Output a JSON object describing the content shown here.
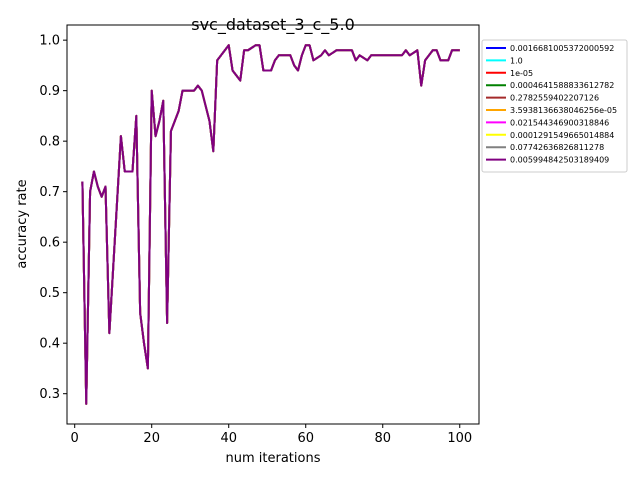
{
  "chart_data": {
    "type": "line",
    "title": "svc_dataset_3_c_5.0",
    "xlabel": "num iterations",
    "ylabel": "accuracy rate",
    "xlim": [
      -2,
      105
    ],
    "ylim": [
      0.24,
      1.03
    ],
    "xticks": [
      0,
      20,
      40,
      60,
      80,
      100
    ],
    "yticks": [
      0.3,
      0.4,
      0.5,
      0.6,
      0.7,
      0.8,
      0.9,
      1.0
    ],
    "grid": false,
    "legend_position": "outside-right",
    "x": [
      2,
      3,
      4,
      5,
      6,
      7,
      8,
      9,
      10,
      11,
      12,
      13,
      14,
      15,
      16,
      17,
      18,
      19,
      20,
      21,
      22,
      23,
      24,
      25,
      26,
      27,
      28,
      29,
      30,
      31,
      32,
      33,
      34,
      35,
      36,
      37,
      38,
      39,
      40,
      41,
      42,
      43,
      44,
      45,
      46,
      47,
      48,
      49,
      50,
      51,
      52,
      53,
      54,
      55,
      56,
      57,
      58,
      59,
      60,
      61,
      62,
      63,
      64,
      65,
      66,
      67,
      68,
      69,
      70,
      71,
      72,
      73,
      74,
      75,
      76,
      77,
      78,
      79,
      80,
      81,
      82,
      83,
      84,
      85,
      86,
      87,
      88,
      89,
      90,
      91,
      92,
      93,
      94,
      95,
      96,
      97,
      98,
      99,
      100
    ],
    "series": [
      {
        "name": "0.0016681005372000592",
        "color": "#0000ff",
        "values": [
          0.72,
          0.28,
          0.7,
          0.74,
          0.71,
          0.69,
          0.71,
          0.42,
          0.55,
          0.68,
          0.81,
          0.74,
          0.74,
          0.74,
          0.85,
          0.46,
          0.4,
          0.35,
          0.9,
          0.81,
          0.84,
          0.88,
          0.44,
          0.82,
          0.84,
          0.86,
          0.9,
          0.9,
          0.9,
          0.9,
          0.91,
          0.9,
          0.87,
          0.84,
          0.78,
          0.96,
          0.97,
          0.98,
          0.99,
          0.94,
          0.93,
          0.92,
          0.98,
          0.98,
          0.985,
          0.99,
          0.99,
          0.94,
          0.94,
          0.94,
          0.96,
          0.97,
          0.97,
          0.97,
          0.97,
          0.95,
          0.94,
          0.97,
          0.99,
          0.99,
          0.96,
          0.965,
          0.97,
          0.98,
          0.97,
          0.975,
          0.98,
          0.98,
          0.98,
          0.98,
          0.98,
          0.96,
          0.97,
          0.965,
          0.96,
          0.97,
          0.97,
          0.97,
          0.97,
          0.97,
          0.97,
          0.97,
          0.97,
          0.97,
          0.98,
          0.97,
          0.975,
          0.98,
          0.91,
          0.96,
          0.97,
          0.98,
          0.98,
          0.96,
          0.96,
          0.96,
          0.98,
          0.98,
          0.98
        ]
      },
      {
        "name": "1.0",
        "color": "#00ffff",
        "values": [
          0.72,
          0.28,
          0.7,
          0.74,
          0.71,
          0.69,
          0.71,
          0.42,
          0.55,
          0.68,
          0.81,
          0.74,
          0.74,
          0.74,
          0.85,
          0.46,
          0.4,
          0.35,
          0.9,
          0.81,
          0.84,
          0.88,
          0.44,
          0.82,
          0.84,
          0.86,
          0.9,
          0.9,
          0.9,
          0.9,
          0.91,
          0.9,
          0.87,
          0.84,
          0.78,
          0.96,
          0.97,
          0.98,
          0.99,
          0.94,
          0.93,
          0.92,
          0.98,
          0.98,
          0.985,
          0.99,
          0.99,
          0.94,
          0.94,
          0.94,
          0.96,
          0.97,
          0.97,
          0.97,
          0.97,
          0.95,
          0.94,
          0.97,
          0.99,
          0.99,
          0.96,
          0.965,
          0.97,
          0.98,
          0.97,
          0.975,
          0.98,
          0.98,
          0.98,
          0.98,
          0.98,
          0.96,
          0.97,
          0.965,
          0.96,
          0.97,
          0.97,
          0.97,
          0.97,
          0.97,
          0.97,
          0.97,
          0.97,
          0.97,
          0.98,
          0.97,
          0.975,
          0.98,
          0.91,
          0.96,
          0.97,
          0.98,
          0.98,
          0.96,
          0.96,
          0.96,
          0.98,
          0.98,
          0.98
        ]
      },
      {
        "name": "1e-05",
        "color": "#ff0000",
        "values": [
          0.72,
          0.28,
          0.7,
          0.74,
          0.71,
          0.69,
          0.71,
          0.42,
          0.55,
          0.68,
          0.81,
          0.74,
          0.74,
          0.74,
          0.85,
          0.46,
          0.4,
          0.35,
          0.9,
          0.81,
          0.84,
          0.88,
          0.44,
          0.82,
          0.84,
          0.86,
          0.9,
          0.9,
          0.9,
          0.9,
          0.91,
          0.9,
          0.87,
          0.84,
          0.78,
          0.96,
          0.97,
          0.98,
          0.99,
          0.94,
          0.93,
          0.92,
          0.98,
          0.98,
          0.985,
          0.99,
          0.99,
          0.94,
          0.94,
          0.94,
          0.96,
          0.97,
          0.97,
          0.97,
          0.97,
          0.95,
          0.94,
          0.97,
          0.99,
          0.99,
          0.96,
          0.965,
          0.97,
          0.98,
          0.97,
          0.975,
          0.98,
          0.98,
          0.98,
          0.98,
          0.98,
          0.96,
          0.97,
          0.965,
          0.96,
          0.97,
          0.97,
          0.97,
          0.97,
          0.97,
          0.97,
          0.97,
          0.97,
          0.97,
          0.98,
          0.97,
          0.975,
          0.98,
          0.91,
          0.96,
          0.97,
          0.98,
          0.98,
          0.96,
          0.96,
          0.96,
          0.98,
          0.98,
          0.98
        ]
      },
      {
        "name": "0.0004641588833612782",
        "color": "#008000",
        "values": [
          0.72,
          0.28,
          0.7,
          0.74,
          0.71,
          0.69,
          0.71,
          0.42,
          0.55,
          0.68,
          0.81,
          0.74,
          0.74,
          0.74,
          0.85,
          0.46,
          0.4,
          0.35,
          0.9,
          0.81,
          0.84,
          0.88,
          0.44,
          0.82,
          0.84,
          0.86,
          0.9,
          0.9,
          0.9,
          0.9,
          0.91,
          0.9,
          0.87,
          0.84,
          0.78,
          0.96,
          0.97,
          0.98,
          0.99,
          0.94,
          0.93,
          0.92,
          0.98,
          0.98,
          0.985,
          0.99,
          0.99,
          0.94,
          0.94,
          0.94,
          0.96,
          0.97,
          0.97,
          0.97,
          0.97,
          0.95,
          0.94,
          0.97,
          0.99,
          0.99,
          0.96,
          0.965,
          0.97,
          0.98,
          0.97,
          0.975,
          0.98,
          0.98,
          0.98,
          0.98,
          0.98,
          0.96,
          0.97,
          0.965,
          0.96,
          0.97,
          0.97,
          0.97,
          0.97,
          0.97,
          0.97,
          0.97,
          0.97,
          0.97,
          0.98,
          0.97,
          0.975,
          0.98,
          0.91,
          0.96,
          0.97,
          0.98,
          0.98,
          0.96,
          0.96,
          0.96,
          0.98,
          0.98,
          0.98
        ]
      },
      {
        "name": "0.2782559402207126",
        "color": "#a52a2a",
        "values": [
          0.72,
          0.28,
          0.7,
          0.74,
          0.71,
          0.69,
          0.71,
          0.42,
          0.55,
          0.68,
          0.81,
          0.74,
          0.74,
          0.74,
          0.85,
          0.46,
          0.4,
          0.35,
          0.9,
          0.81,
          0.84,
          0.88,
          0.44,
          0.82,
          0.84,
          0.86,
          0.9,
          0.9,
          0.9,
          0.9,
          0.91,
          0.9,
          0.87,
          0.84,
          0.78,
          0.96,
          0.97,
          0.98,
          0.99,
          0.94,
          0.93,
          0.92,
          0.98,
          0.98,
          0.985,
          0.99,
          0.99,
          0.94,
          0.94,
          0.94,
          0.96,
          0.97,
          0.97,
          0.97,
          0.97,
          0.95,
          0.94,
          0.97,
          0.99,
          0.99,
          0.96,
          0.965,
          0.97,
          0.98,
          0.97,
          0.975,
          0.98,
          0.98,
          0.98,
          0.98,
          0.98,
          0.96,
          0.97,
          0.965,
          0.96,
          0.97,
          0.97,
          0.97,
          0.97,
          0.97,
          0.97,
          0.97,
          0.97,
          0.97,
          0.98,
          0.97,
          0.975,
          0.98,
          0.91,
          0.96,
          0.97,
          0.98,
          0.98,
          0.96,
          0.96,
          0.96,
          0.98,
          0.98,
          0.98
        ]
      },
      {
        "name": "3.5938136638046256e-05",
        "color": "#ffa500",
        "values": [
          0.72,
          0.28,
          0.7,
          0.74,
          0.71,
          0.69,
          0.71,
          0.42,
          0.55,
          0.68,
          0.81,
          0.74,
          0.74,
          0.74,
          0.85,
          0.46,
          0.4,
          0.35,
          0.9,
          0.81,
          0.84,
          0.88,
          0.44,
          0.82,
          0.84,
          0.86,
          0.9,
          0.9,
          0.9,
          0.9,
          0.91,
          0.9,
          0.87,
          0.84,
          0.78,
          0.96,
          0.97,
          0.98,
          0.99,
          0.94,
          0.93,
          0.92,
          0.98,
          0.98,
          0.985,
          0.99,
          0.99,
          0.94,
          0.94,
          0.94,
          0.96,
          0.97,
          0.97,
          0.97,
          0.97,
          0.95,
          0.94,
          0.97,
          0.99,
          0.99,
          0.96,
          0.965,
          0.97,
          0.98,
          0.97,
          0.975,
          0.98,
          0.98,
          0.98,
          0.98,
          0.98,
          0.96,
          0.97,
          0.965,
          0.96,
          0.97,
          0.97,
          0.97,
          0.97,
          0.97,
          0.97,
          0.97,
          0.97,
          0.97,
          0.98,
          0.97,
          0.975,
          0.98,
          0.91,
          0.96,
          0.97,
          0.98,
          0.98,
          0.96,
          0.96,
          0.96,
          0.98,
          0.98,
          0.98
        ]
      },
      {
        "name": "0.021544346900318846",
        "color": "#ff00ff",
        "values": [
          0.72,
          0.28,
          0.7,
          0.74,
          0.71,
          0.69,
          0.71,
          0.42,
          0.55,
          0.68,
          0.81,
          0.74,
          0.74,
          0.74,
          0.85,
          0.46,
          0.4,
          0.35,
          0.9,
          0.81,
          0.84,
          0.88,
          0.44,
          0.82,
          0.84,
          0.86,
          0.9,
          0.9,
          0.9,
          0.9,
          0.91,
          0.9,
          0.87,
          0.84,
          0.78,
          0.96,
          0.97,
          0.98,
          0.99,
          0.94,
          0.93,
          0.92,
          0.98,
          0.98,
          0.985,
          0.99,
          0.99,
          0.94,
          0.94,
          0.94,
          0.96,
          0.97,
          0.97,
          0.97,
          0.97,
          0.95,
          0.94,
          0.97,
          0.99,
          0.99,
          0.96,
          0.965,
          0.97,
          0.98,
          0.97,
          0.975,
          0.98,
          0.98,
          0.98,
          0.98,
          0.98,
          0.96,
          0.97,
          0.965,
          0.96,
          0.97,
          0.97,
          0.97,
          0.97,
          0.97,
          0.97,
          0.97,
          0.97,
          0.97,
          0.98,
          0.97,
          0.975,
          0.98,
          0.91,
          0.96,
          0.97,
          0.98,
          0.98,
          0.96,
          0.96,
          0.96,
          0.98,
          0.98,
          0.98
        ]
      },
      {
        "name": "0.0001291549665014884",
        "color": "#ffff00",
        "values": [
          0.72,
          0.28,
          0.7,
          0.74,
          0.71,
          0.69,
          0.71,
          0.42,
          0.55,
          0.68,
          0.81,
          0.74,
          0.74,
          0.74,
          0.85,
          0.46,
          0.4,
          0.35,
          0.9,
          0.81,
          0.84,
          0.88,
          0.44,
          0.82,
          0.84,
          0.86,
          0.9,
          0.9,
          0.9,
          0.9,
          0.91,
          0.9,
          0.87,
          0.84,
          0.78,
          0.96,
          0.97,
          0.98,
          0.99,
          0.94,
          0.93,
          0.92,
          0.98,
          0.98,
          0.985,
          0.99,
          0.99,
          0.94,
          0.94,
          0.94,
          0.96,
          0.97,
          0.97,
          0.97,
          0.97,
          0.95,
          0.94,
          0.97,
          0.99,
          0.99,
          0.96,
          0.965,
          0.97,
          0.98,
          0.97,
          0.975,
          0.98,
          0.98,
          0.98,
          0.98,
          0.98,
          0.96,
          0.97,
          0.965,
          0.96,
          0.97,
          0.97,
          0.97,
          0.97,
          0.97,
          0.97,
          0.97,
          0.97,
          0.97,
          0.98,
          0.97,
          0.975,
          0.98,
          0.91,
          0.96,
          0.97,
          0.98,
          0.98,
          0.96,
          0.96,
          0.96,
          0.98,
          0.98,
          0.98
        ]
      },
      {
        "name": "0.07742636826811278",
        "color": "#808080",
        "values": [
          0.72,
          0.28,
          0.7,
          0.74,
          0.71,
          0.69,
          0.71,
          0.42,
          0.55,
          0.68,
          0.81,
          0.74,
          0.74,
          0.74,
          0.85,
          0.46,
          0.4,
          0.35,
          0.9,
          0.81,
          0.84,
          0.88,
          0.44,
          0.82,
          0.84,
          0.86,
          0.9,
          0.9,
          0.9,
          0.9,
          0.91,
          0.9,
          0.87,
          0.84,
          0.78,
          0.96,
          0.97,
          0.98,
          0.99,
          0.94,
          0.93,
          0.92,
          0.98,
          0.98,
          0.985,
          0.99,
          0.99,
          0.94,
          0.94,
          0.94,
          0.96,
          0.97,
          0.97,
          0.97,
          0.97,
          0.95,
          0.94,
          0.97,
          0.99,
          0.99,
          0.96,
          0.965,
          0.97,
          0.98,
          0.97,
          0.975,
          0.98,
          0.98,
          0.98,
          0.98,
          0.98,
          0.96,
          0.97,
          0.965,
          0.96,
          0.97,
          0.97,
          0.97,
          0.97,
          0.97,
          0.97,
          0.97,
          0.97,
          0.97,
          0.98,
          0.97,
          0.975,
          0.98,
          0.91,
          0.96,
          0.97,
          0.98,
          0.98,
          0.96,
          0.96,
          0.96,
          0.98,
          0.98,
          0.98
        ]
      },
      {
        "name": "0.005994842503189409",
        "color": "#800080",
        "values": [
          0.72,
          0.28,
          0.7,
          0.74,
          0.71,
          0.69,
          0.71,
          0.42,
          0.55,
          0.68,
          0.81,
          0.74,
          0.74,
          0.74,
          0.85,
          0.46,
          0.4,
          0.35,
          0.9,
          0.81,
          0.84,
          0.88,
          0.44,
          0.82,
          0.84,
          0.86,
          0.9,
          0.9,
          0.9,
          0.9,
          0.91,
          0.9,
          0.87,
          0.84,
          0.78,
          0.96,
          0.97,
          0.98,
          0.99,
          0.94,
          0.93,
          0.92,
          0.98,
          0.98,
          0.985,
          0.99,
          0.99,
          0.94,
          0.94,
          0.94,
          0.96,
          0.97,
          0.97,
          0.97,
          0.97,
          0.95,
          0.94,
          0.97,
          0.99,
          0.99,
          0.96,
          0.965,
          0.97,
          0.98,
          0.97,
          0.975,
          0.98,
          0.98,
          0.98,
          0.98,
          0.98,
          0.96,
          0.97,
          0.965,
          0.96,
          0.97,
          0.97,
          0.97,
          0.97,
          0.97,
          0.97,
          0.97,
          0.97,
          0.97,
          0.98,
          0.97,
          0.975,
          0.98,
          0.91,
          0.96,
          0.97,
          0.98,
          0.98,
          0.96,
          0.96,
          0.96,
          0.98,
          0.98,
          0.98
        ]
      }
    ]
  }
}
